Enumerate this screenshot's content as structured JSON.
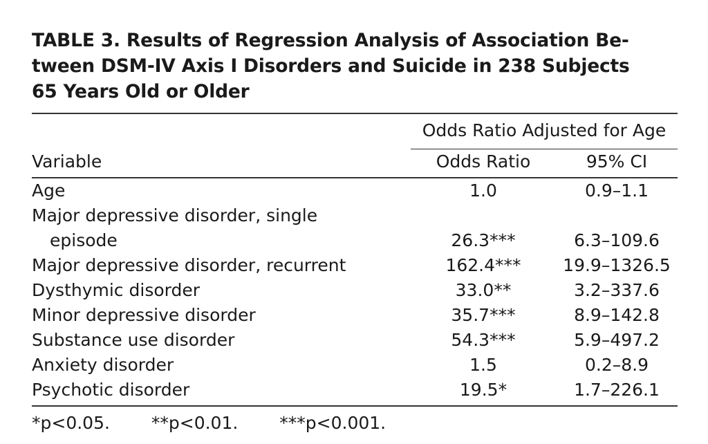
{
  "table": {
    "title_lines": [
      "TABLE 3. Results of Regression Analysis of Association Be-",
      "tween DSM-IV Axis I Disorders and Suicide in 238 Subjects",
      "65 Years Old or Older"
    ],
    "spanning_header": "Odds Ratio Adjusted for Age",
    "col_variable": "Variable",
    "col_or": "Odds Ratio",
    "col_ci": "95% CI",
    "rows": [
      {
        "variable": "Age",
        "or": "1.0",
        "ci": "0.9–1.1"
      },
      {
        "variable": "Major depressive disorder, single",
        "or": "",
        "ci": ""
      },
      {
        "variable": "episode",
        "or": "26.3***",
        "ci": "6.3–109.6"
      },
      {
        "variable": "Major depressive disorder, recurrent",
        "or": "162.4***",
        "ci": "19.9–1326.5"
      },
      {
        "variable": "Dysthymic disorder",
        "or": "33.0**",
        "ci": "3.2–337.6"
      },
      {
        "variable": "Minor depressive disorder",
        "or": "35.7***",
        "ci": "8.9–142.8"
      },
      {
        "variable": "Substance use disorder",
        "or": "54.3***",
        "ci": "5.9–497.2"
      },
      {
        "variable": "Anxiety disorder",
        "or": "1.5",
        "ci": "0.2–8.9"
      },
      {
        "variable": "Psychotic disorder",
        "or": "19.5*",
        "ci": "1.7–226.1"
      }
    ],
    "footnotes": [
      "*p<0.05.",
      "**p<0.01.",
      "***p<0.001."
    ]
  }
}
